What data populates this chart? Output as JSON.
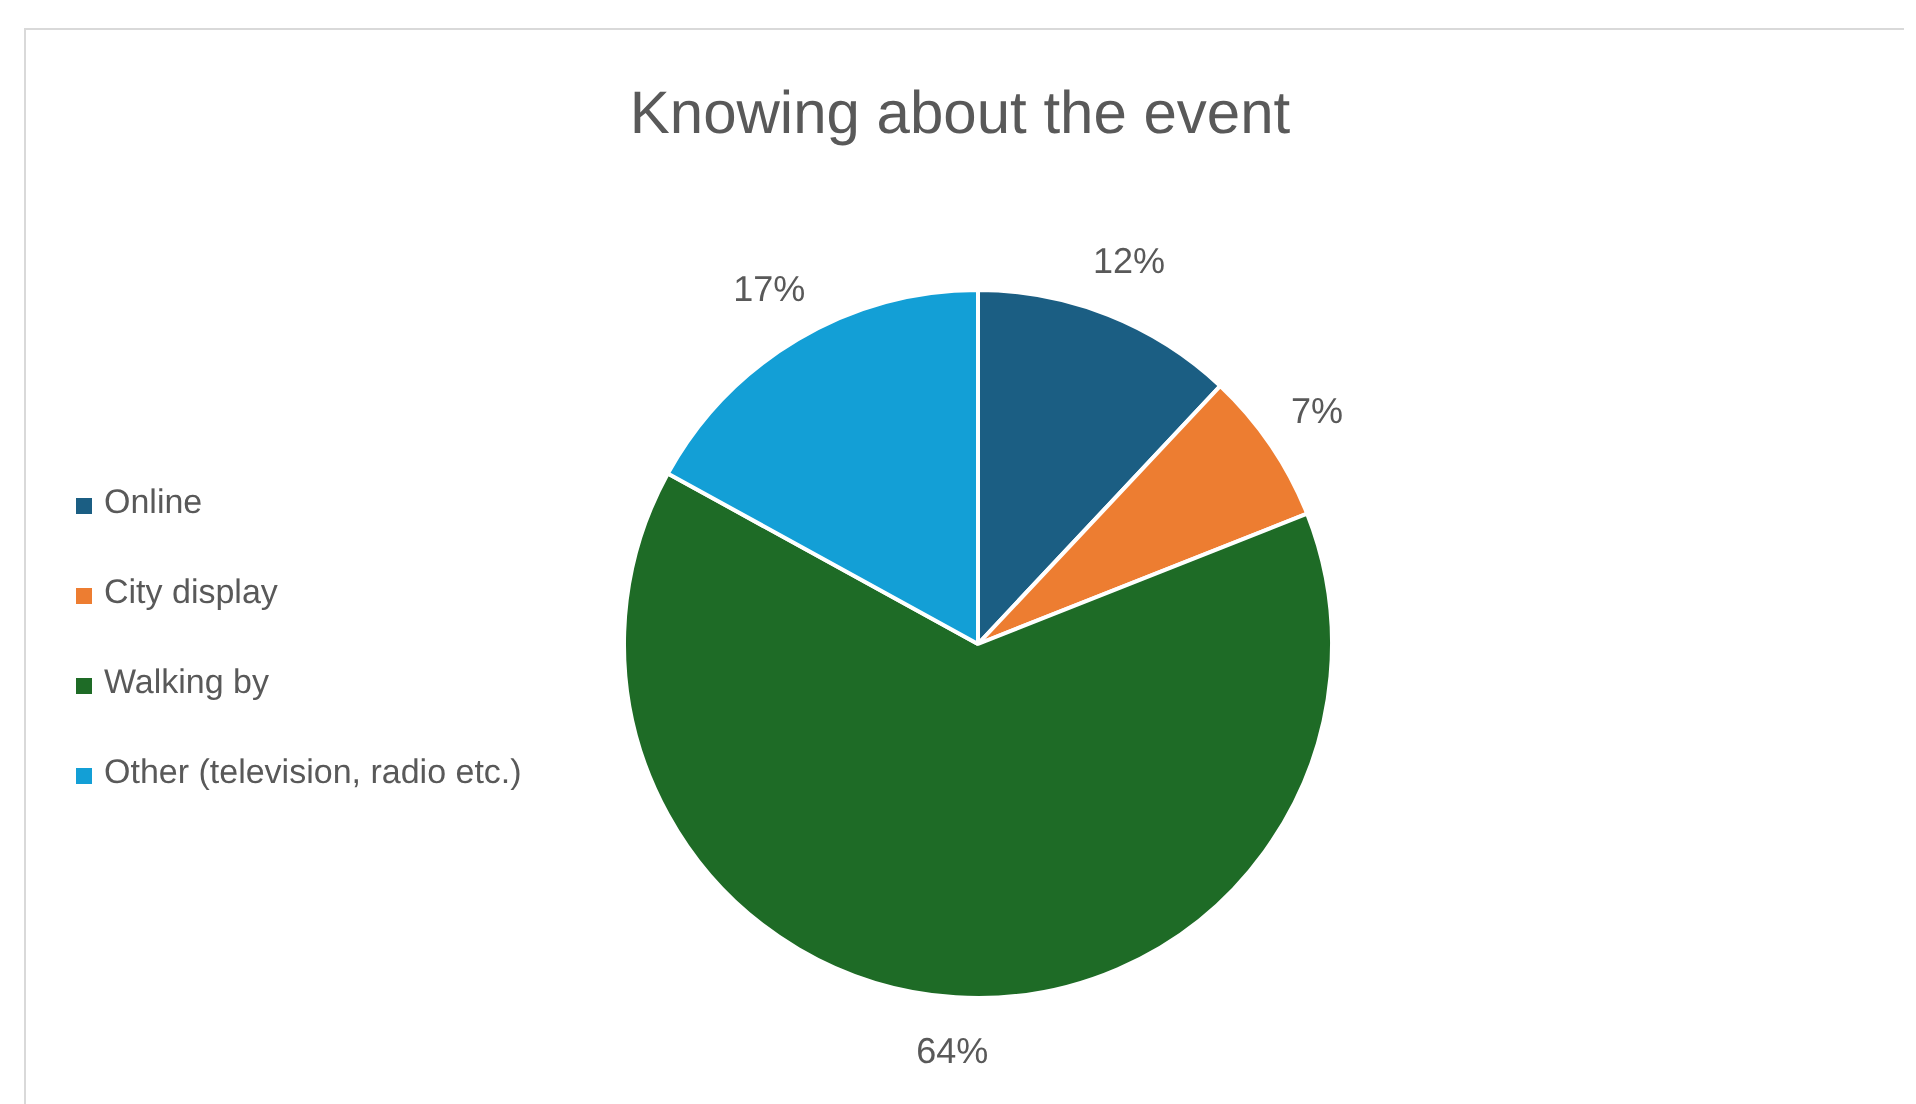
{
  "chart_data": {
    "type": "pie",
    "title": "Knowing about the event",
    "categories": [
      "Online",
      "City display",
      "Walking by",
      "Other (television, radio etc.)"
    ],
    "values": [
      12,
      7,
      64,
      17
    ],
    "colors": [
      "#1b5e83",
      "#ed7d31",
      "#1e6b26",
      "#139fd6"
    ],
    "value_labels": [
      "12%",
      "7%",
      "64%",
      "17%"
    ],
    "legend": "left"
  }
}
